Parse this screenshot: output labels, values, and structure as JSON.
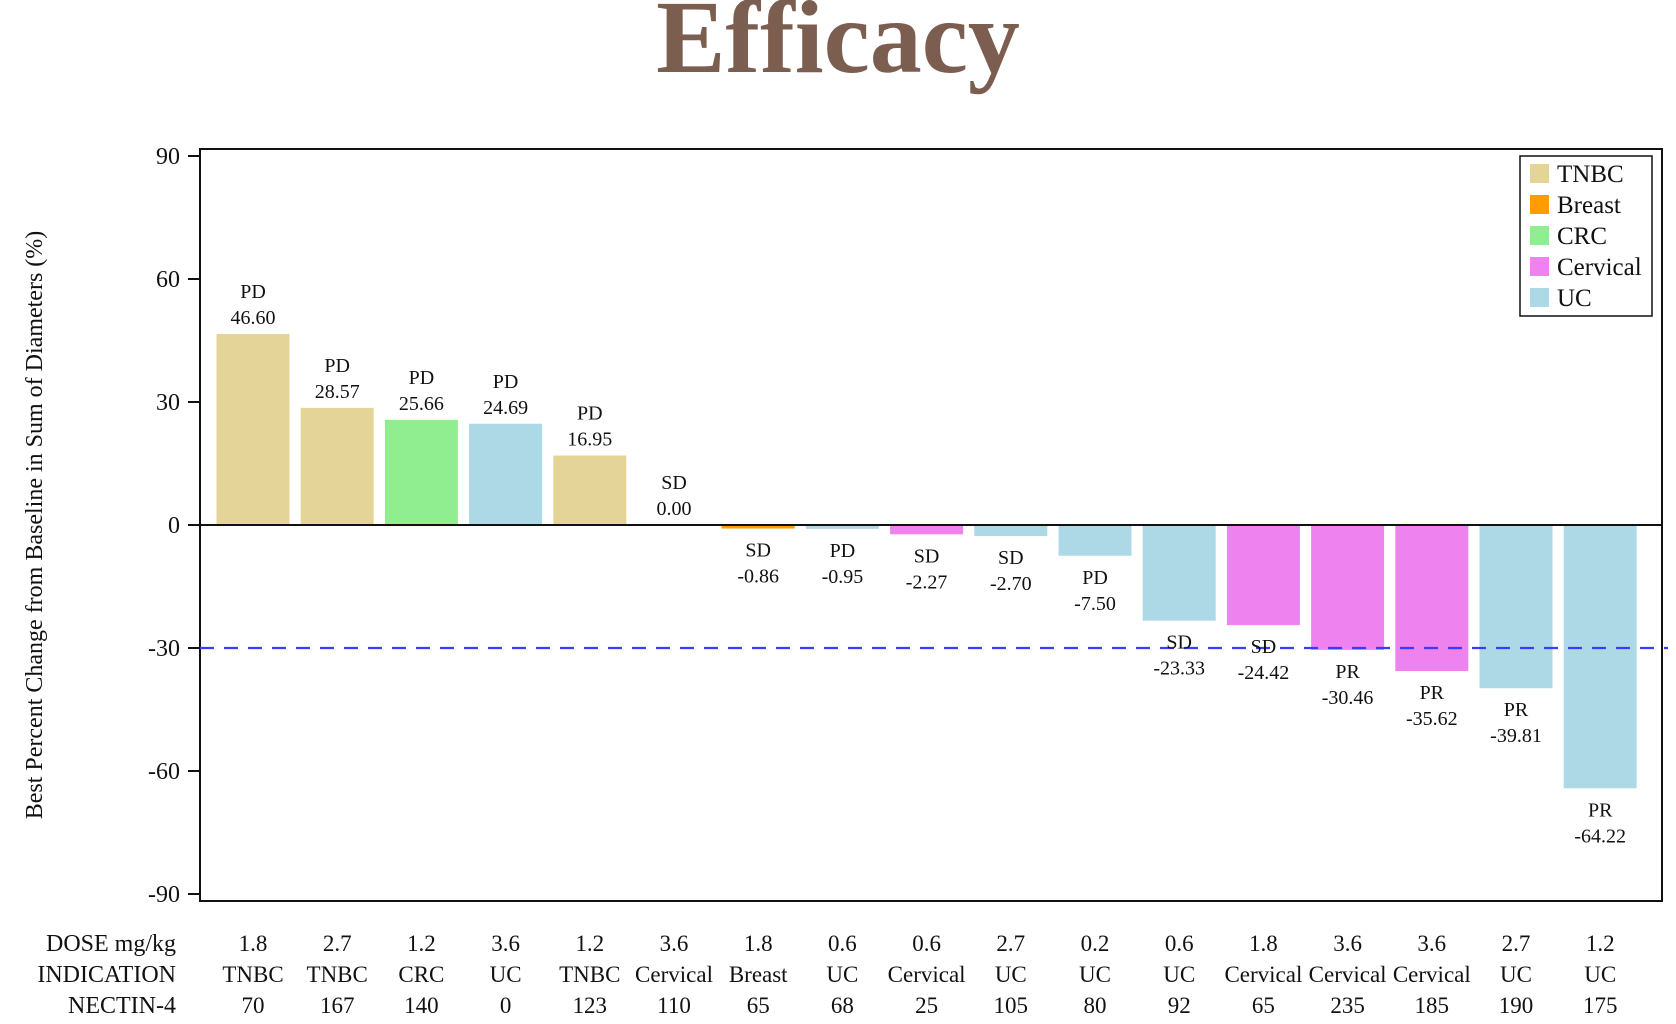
{
  "page": {
    "title": "Efficacy"
  },
  "chart_data": {
    "type": "bar",
    "ylabel": "Best Percent Change from Baseline in Sum of Diameters (%)",
    "xlabel": "",
    "ylim": [
      -90,
      90
    ],
    "yticks": [
      "90",
      "60",
      "30",
      "0",
      "-30",
      "-60",
      "-90"
    ],
    "threshold": {
      "value": -30,
      "style": "dashed",
      "color": "#3b3bff"
    },
    "legend": {
      "placement": "top-right",
      "items": [
        {
          "name": "TNBC",
          "color": "#e5d497"
        },
        {
          "name": "Breast",
          "color": "#ff9c00"
        },
        {
          "name": "CRC",
          "color": "#90ee90"
        },
        {
          "name": "Cervical",
          "color": "#ee82ee"
        },
        {
          "name": "UC",
          "color": "#add8e6"
        }
      ]
    },
    "table_row_labels": [
      "DOSE mg/kg",
      "INDICATION",
      "NECTIN-4"
    ],
    "bars": [
      {
        "value": 46.6,
        "label": "46.60",
        "response": "PD",
        "dose": "1.8",
        "indication": "TNBC",
        "nectin": "70"
      },
      {
        "value": 28.57,
        "label": "28.57",
        "response": "PD",
        "dose": "2.7",
        "indication": "TNBC",
        "nectin": "167"
      },
      {
        "value": 25.66,
        "label": "25.66",
        "response": "PD",
        "dose": "1.2",
        "indication": "CRC",
        "nectin": "140"
      },
      {
        "value": 24.69,
        "label": "24.69",
        "response": "PD",
        "dose": "3.6",
        "indication": "UC",
        "nectin": "0"
      },
      {
        "value": 16.95,
        "label": "16.95",
        "response": "PD",
        "dose": "1.2",
        "indication": "TNBC",
        "nectin": "123"
      },
      {
        "value": 0.0,
        "label": "0.00",
        "response": "SD",
        "dose": "3.6",
        "indication": "Cervical",
        "nectin": "110"
      },
      {
        "value": -0.86,
        "label": "-0.86",
        "response": "SD",
        "dose": "1.8",
        "indication": "Breast",
        "nectin": "65"
      },
      {
        "value": -0.95,
        "label": "-0.95",
        "response": "PD",
        "dose": "0.6",
        "indication": "UC",
        "nectin": "68"
      },
      {
        "value": -2.27,
        "label": "-2.27",
        "response": "SD",
        "dose": "0.6",
        "indication": "Cervical",
        "nectin": "25"
      },
      {
        "value": -2.7,
        "label": "-2.70",
        "response": "SD",
        "dose": "2.7",
        "indication": "UC",
        "nectin": "105"
      },
      {
        "value": -7.5,
        "label": "-7.50",
        "response": "PD",
        "dose": "0.2",
        "indication": "UC",
        "nectin": "80"
      },
      {
        "value": -23.33,
        "label": "-23.33",
        "response": "SD",
        "dose": "0.6",
        "indication": "UC",
        "nectin": "92"
      },
      {
        "value": -24.42,
        "label": "-24.42",
        "response": "SD",
        "dose": "1.8",
        "indication": "Cervical",
        "nectin": "65"
      },
      {
        "value": -30.46,
        "label": "-30.46",
        "response": "PR",
        "dose": "3.6",
        "indication": "Cervical",
        "nectin": "235"
      },
      {
        "value": -35.62,
        "label": "-35.62",
        "response": "PR",
        "dose": "3.6",
        "indication": "Cervical",
        "nectin": "185"
      },
      {
        "value": -39.81,
        "label": "-39.81",
        "response": "PR",
        "dose": "2.7",
        "indication": "UC",
        "nectin": "190"
      },
      {
        "value": -64.22,
        "label": "-64.22",
        "response": "PR",
        "dose": "1.2",
        "indication": "UC",
        "nectin": "175"
      }
    ]
  }
}
